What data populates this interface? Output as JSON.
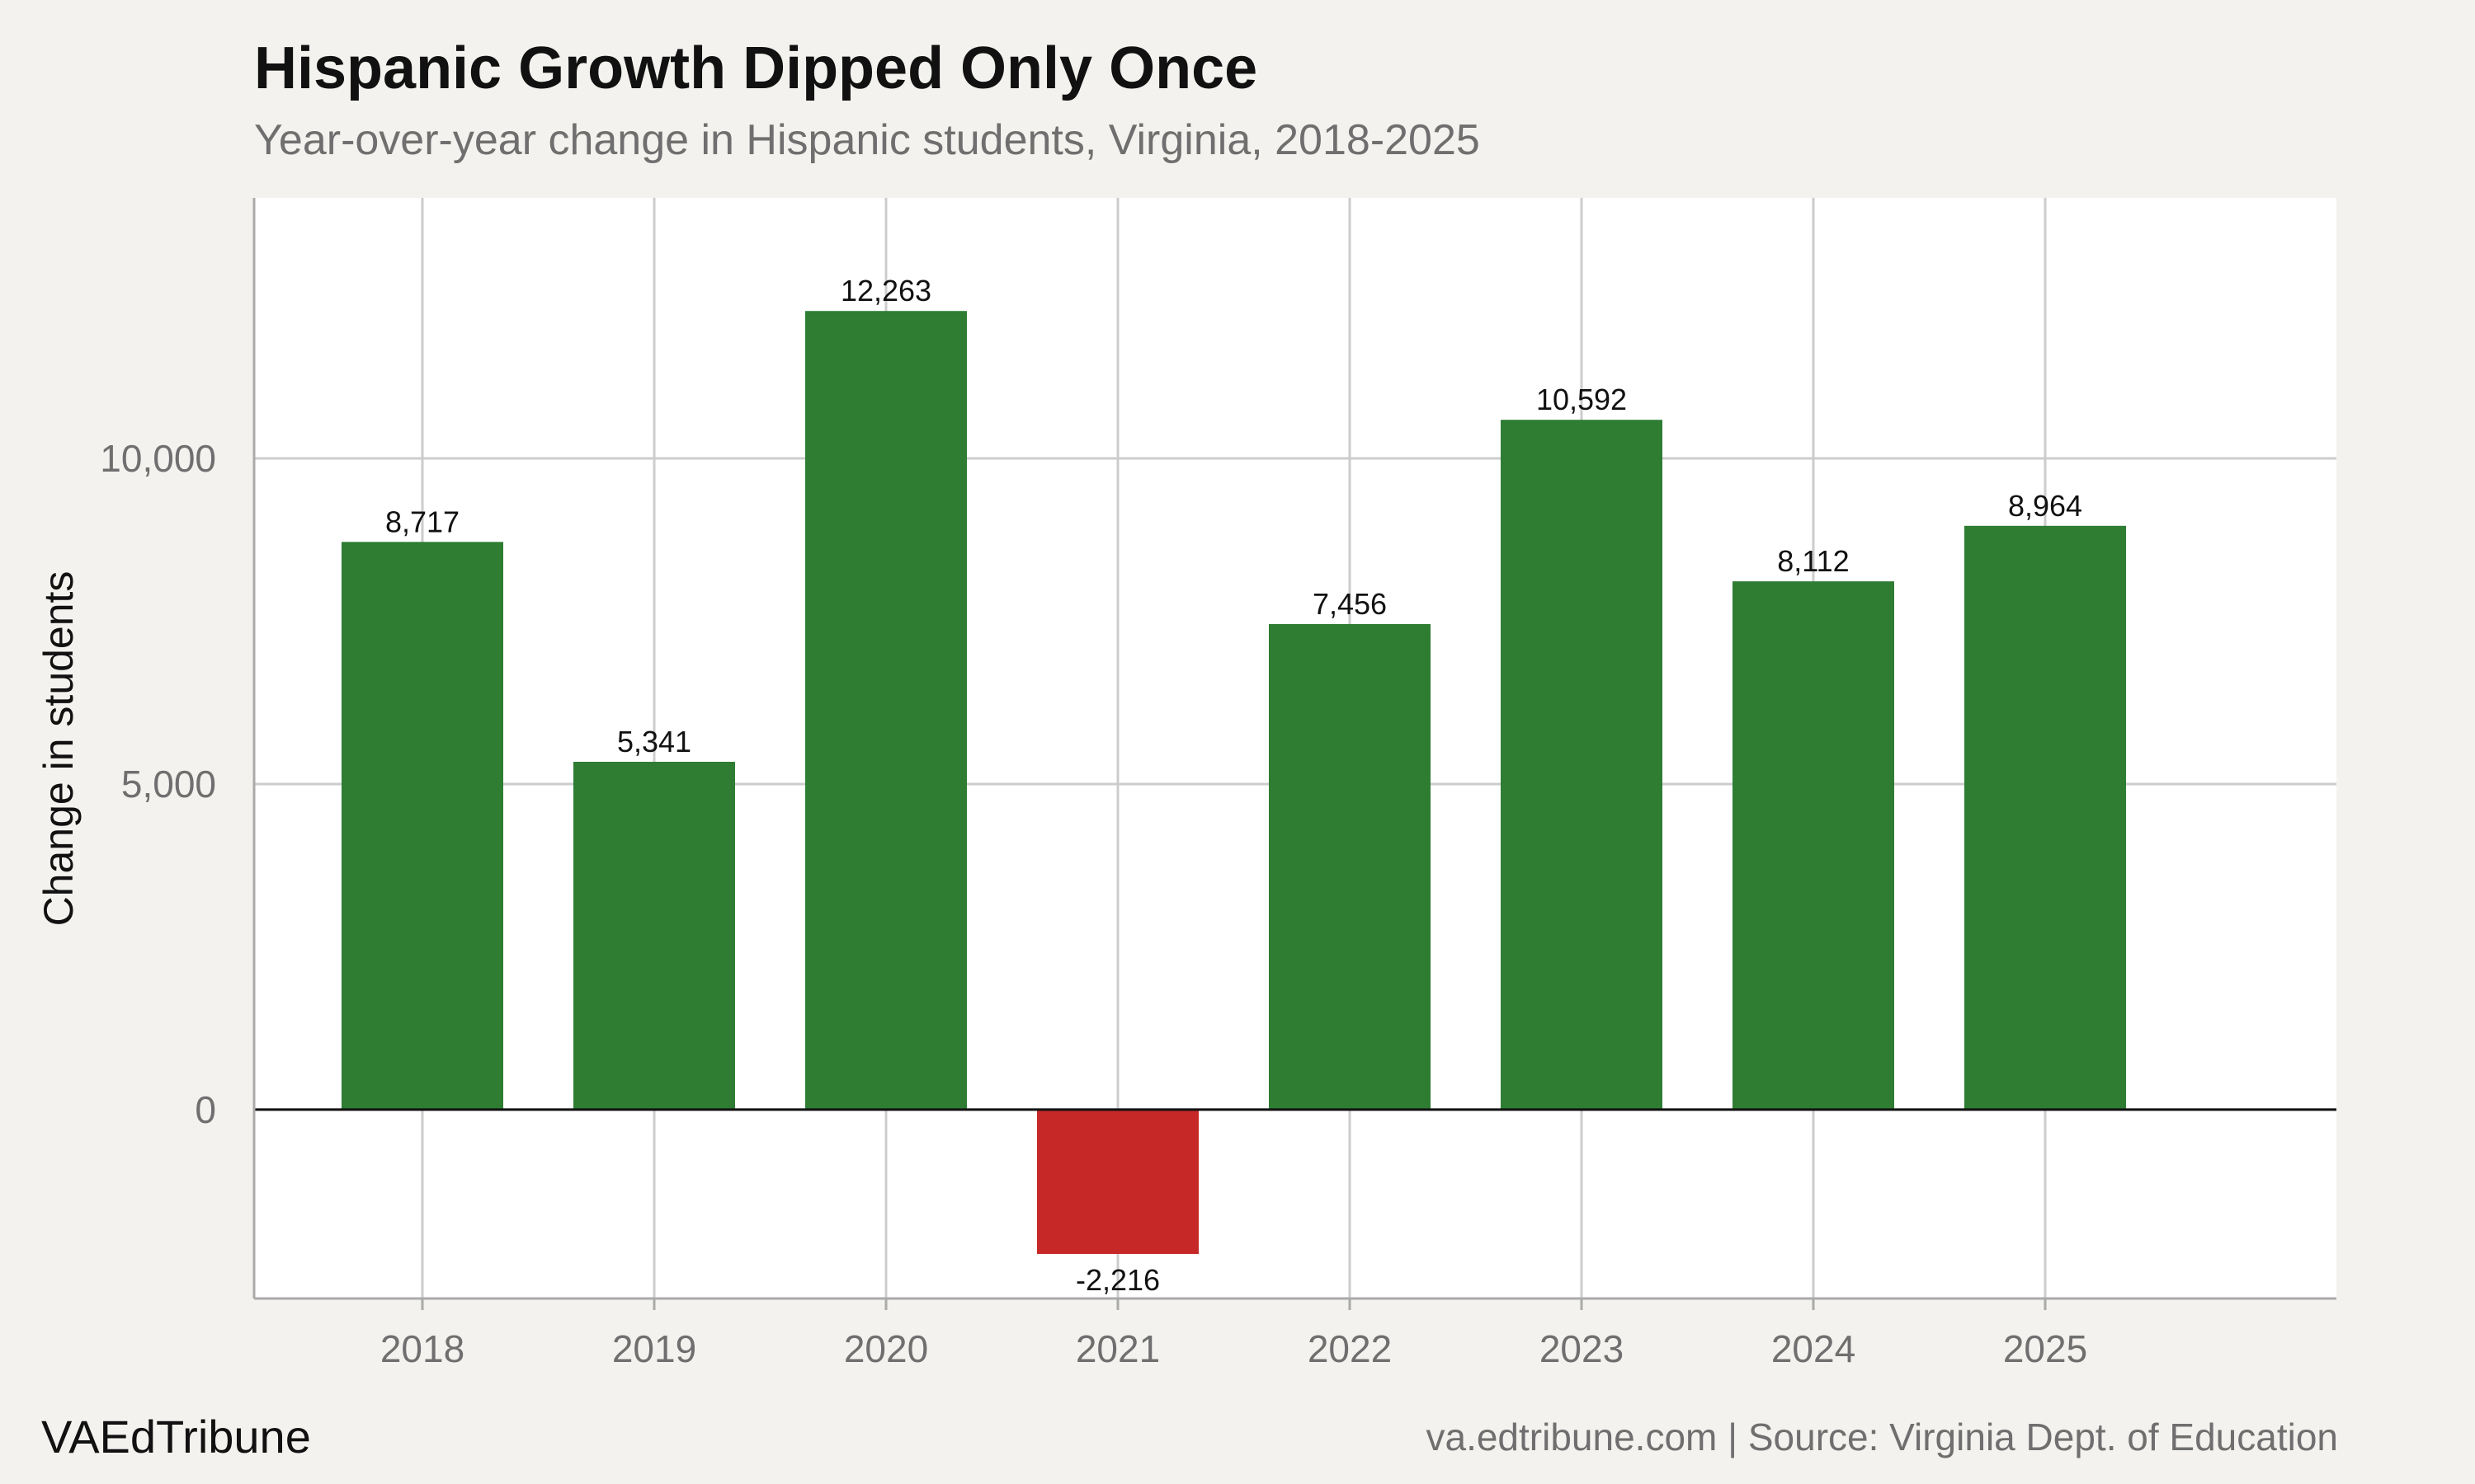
{
  "header": {
    "title": "Hispanic Growth Dipped Only Once",
    "subtitle": "Year-over-year change in Hispanic students, Virginia, 2018-2025"
  },
  "footer": {
    "brand": "VAEdTribune",
    "source": "va.edtribune.com | Source: Virginia Dept. of Education"
  },
  "chart_data": {
    "type": "bar",
    "title": "Hispanic Growth Dipped Only Once",
    "subtitle": "Year-over-year change in Hispanic students, Virginia, 2018-2025",
    "xlabel": "",
    "ylabel": "Change in students",
    "categories": [
      "2018",
      "2019",
      "2020",
      "2021",
      "2022",
      "2023",
      "2024",
      "2025"
    ],
    "values": [
      8717,
      5341,
      12263,
      -2216,
      7456,
      10592,
      8112,
      8964
    ],
    "data_labels": [
      "8,717",
      "5,341",
      "12,263",
      "-2,216",
      "7,456",
      "10,592",
      "8,112",
      "8,964"
    ],
    "yticks": [
      0,
      5000,
      10000
    ],
    "ytick_labels": [
      "0",
      "5,000",
      "10,000"
    ],
    "ylim": [
      -2900,
      14000
    ],
    "grid": true,
    "colors": {
      "positive": "#2e7d32",
      "negative": "#c62828",
      "panel": "#ffffff",
      "background": "#f4f2ee",
      "grid": "#cccccc",
      "zero_line": "#111111"
    }
  }
}
